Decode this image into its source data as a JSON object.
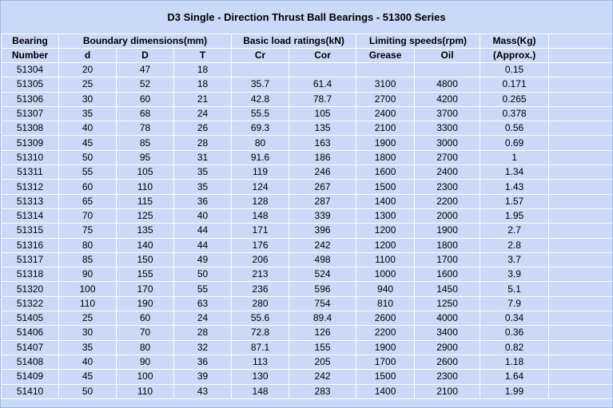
{
  "title": "D3 Single - Direction Thrust Ball Bearings - 51300 Series",
  "header": {
    "bearing_top": "Bearing",
    "bearing_bottom": "Number",
    "boundary": "Boundary dimensions(mm)",
    "load": "Basic load ratings(kN)",
    "speeds": "Limiting speeds(rpm)",
    "mass_top": "Mass(Kg)",
    "mass_bottom": "(Approx.)",
    "d": "d",
    "D": "D",
    "T": "T",
    "Cr": "Cr",
    "Cor": "Cor",
    "grease": "Grease",
    "oil": "Oil"
  },
  "rows": [
    [
      "51304",
      "20",
      "47",
      "18",
      "",
      "",
      "",
      "",
      "0.15"
    ],
    [
      "51305",
      "25",
      "52",
      "18",
      "35.7",
      "61.4",
      "3100",
      "4800",
      "0.171"
    ],
    [
      "51306",
      "30",
      "60",
      "21",
      "42.8",
      "78.7",
      "2700",
      "4200",
      "0.265"
    ],
    [
      "51307",
      "35",
      "68",
      "24",
      "55.5",
      "105",
      "2400",
      "3700",
      "0.378"
    ],
    [
      "51308",
      "40",
      "78",
      "26",
      "69.3",
      "135",
      "2100",
      "3300",
      "0.56"
    ],
    [
      "51309",
      "45",
      "85",
      "28",
      "80",
      "163",
      "1900",
      "3000",
      "0.69"
    ],
    [
      "51310",
      "50",
      "95",
      "31",
      "91.6",
      "186",
      "1800",
      "2700",
      "1"
    ],
    [
      "51311",
      "55",
      "105",
      "35",
      "119",
      "246",
      "1600",
      "2400",
      "1.34"
    ],
    [
      "51312",
      "60",
      "110",
      "35",
      "124",
      "267",
      "1500",
      "2300",
      "1.43"
    ],
    [
      "51313",
      "65",
      "115",
      "36",
      "128",
      "287",
      "1400",
      "2200",
      "1.57"
    ],
    [
      "51314",
      "70",
      "125",
      "40",
      "148",
      "339",
      "1300",
      "2000",
      "1.95"
    ],
    [
      "51315",
      "75",
      "135",
      "44",
      "171",
      "396",
      "1200",
      "1900",
      "2.7"
    ],
    [
      "51316",
      "80",
      "140",
      "44",
      "176",
      "242",
      "1200",
      "1800",
      "2.8"
    ],
    [
      "51317",
      "85",
      "150",
      "49",
      "206",
      "498",
      "1100",
      "1700",
      "3.7"
    ],
    [
      "51318",
      "90",
      "155",
      "50",
      "213",
      "524",
      "1000",
      "1600",
      "3.9"
    ],
    [
      "51320",
      "100",
      "170",
      "55",
      "236",
      "596",
      "940",
      "1450",
      "5.1"
    ],
    [
      "51322",
      "110",
      "190",
      "63",
      "280",
      "754",
      "810",
      "1250",
      "7.9"
    ],
    [
      "51405",
      "25",
      "60",
      "24",
      "55.6",
      "89.4",
      "2600",
      "4000",
      "0.34"
    ],
    [
      "51406",
      "30",
      "70",
      "28",
      "72.8",
      "126",
      "2200",
      "3400",
      "0.36"
    ],
    [
      "51407",
      "35",
      "80",
      "32",
      "87.1",
      "155",
      "1900",
      "2900",
      "0.82"
    ],
    [
      "51408",
      "40",
      "90",
      "36",
      "113",
      "205",
      "1700",
      "2600",
      "1.18"
    ],
    [
      "51409",
      "45",
      "100",
      "39",
      "130",
      "242",
      "1500",
      "2300",
      "1.64"
    ],
    [
      "51410",
      "50",
      "110",
      "43",
      "148",
      "283",
      "1400",
      "2100",
      "1.99"
    ]
  ]
}
